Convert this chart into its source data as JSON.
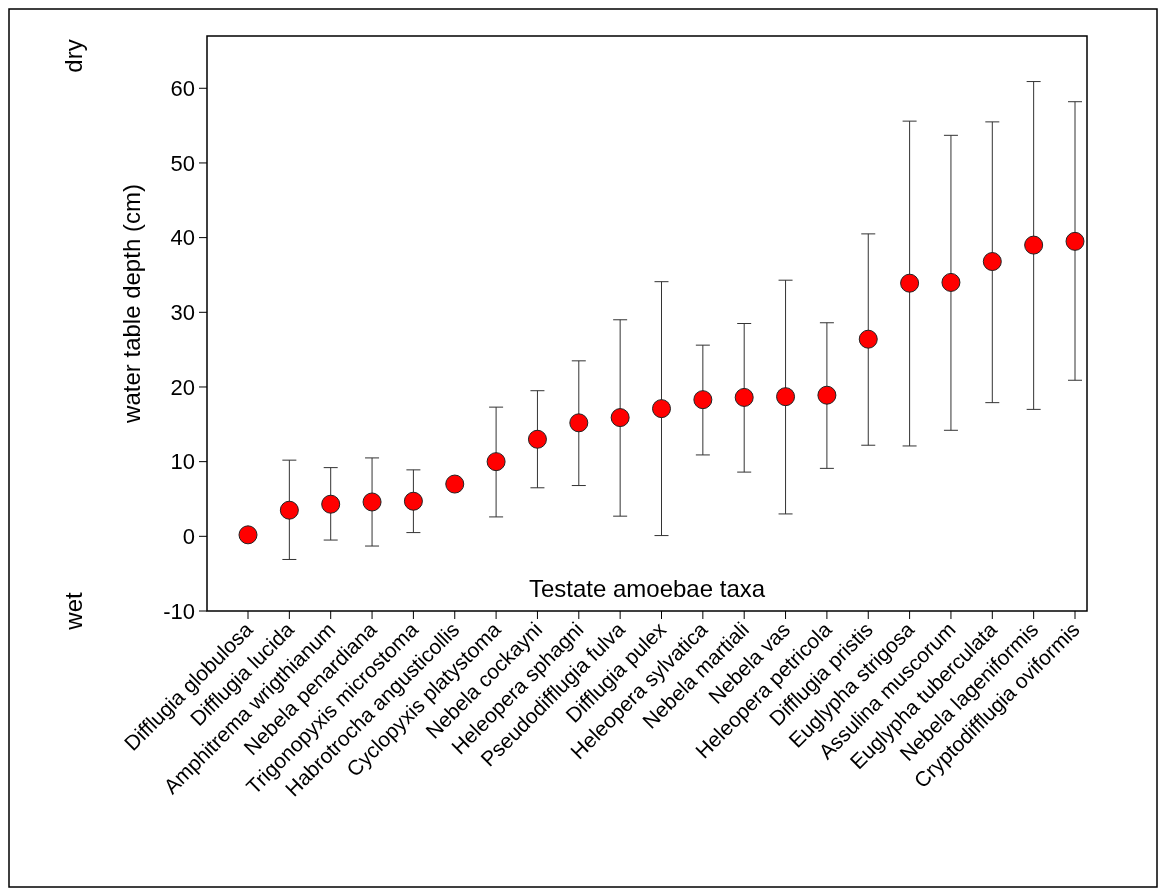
{
  "chart_data": {
    "type": "scatter",
    "xlabel": "Testate amoebae taxa",
    "ylabel": "water table depth (cm)",
    "annotations": [
      "dry",
      "wet"
    ],
    "categories": [
      "Difflugia globulosa",
      "Difflugia lucida",
      "Amphitrema wrigthianum",
      "Nebela penardiana",
      "Trigonopyxis microstoma",
      "Habrotrocha angusticollis",
      "Cyclopyxis platystoma",
      "Nebela cockayni",
      "Heleopera sphagni",
      "Pseudodifflugia fulva",
      "Difflugia pulex",
      "Heleopera sylvatica",
      "Nebela martiali",
      "Nebela vas",
      "Heleopera petricola",
      "Difflugia pristis",
      "Euglypha strigosa",
      "Assulina muscorum",
      "Euglypha tuberculata",
      "Nebela lageniformis",
      "Cryptodifflugia oviformis"
    ],
    "values": [
      0.2,
      3.5,
      4.3,
      4.6,
      4.7,
      7.0,
      10.0,
      13.0,
      15.2,
      15.9,
      17.1,
      18.3,
      18.6,
      18.7,
      18.9,
      26.4,
      33.9,
      34.0,
      36.8,
      39.0,
      39.5
    ],
    "errors": [
      null,
      [
        -3.1,
        10.2
      ],
      [
        -0.5,
        9.2
      ],
      [
        -1.3,
        10.5
      ],
      [
        0.5,
        8.9
      ],
      null,
      [
        2.6,
        17.3
      ],
      [
        6.5,
        19.5
      ],
      [
        6.8,
        23.5
      ],
      [
        2.7,
        29.0
      ],
      [
        0.1,
        34.1
      ],
      [
        10.9,
        25.6
      ],
      [
        8.6,
        28.5
      ],
      [
        3.0,
        34.3
      ],
      [
        9.1,
        28.6
      ],
      [
        12.2,
        40.5
      ],
      [
        12.1,
        55.6
      ],
      [
        14.2,
        53.7
      ],
      [
        17.9,
        55.5
      ],
      [
        17.0,
        60.9
      ],
      [
        20.9,
        58.2
      ]
    ],
    "color": "#ff0000",
    "marker": "circle",
    "ylim": [
      -10,
      67
    ],
    "yticks": [
      -10,
      0,
      10,
      20,
      30,
      40,
      50,
      60
    ],
    "grid": false
  }
}
